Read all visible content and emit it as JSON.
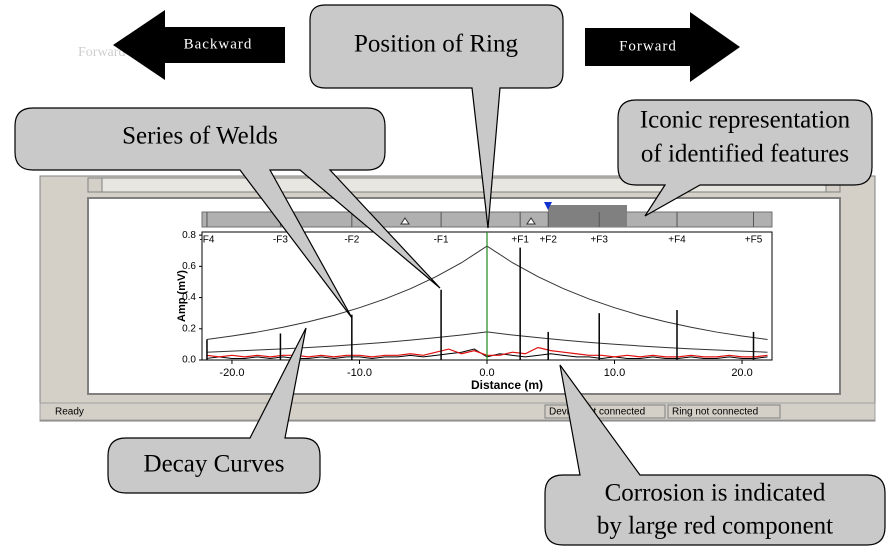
{
  "annotations": {
    "backward": "Backward",
    "forward": "Forward",
    "hidden_label": "Forward",
    "ring": "Position of Ring",
    "welds": "Series of Welds",
    "icons": [
      "Iconic representation",
      "of identified features"
    ],
    "decay": "Decay Curves",
    "corrosion": [
      "Corrosion is indicated",
      "by large red component"
    ]
  },
  "status_bar": [
    "Ready",
    "Device not connected",
    "Ring not connected"
  ],
  "chart": {
    "type": "line",
    "ylabel": "Amp (mV)",
    "xlabel": "Distance (m)",
    "xlim": [
      -22.35,
      22.35
    ],
    "ylim": [
      0,
      0.82
    ],
    "xticks": [
      {
        "value": -20,
        "label": "-20.0"
      },
      {
        "value": -10,
        "label": "-10.0"
      },
      {
        "value": 0,
        "label": "0.0"
      },
      {
        "value": 10,
        "label": "10.0"
      },
      {
        "value": 20,
        "label": "20.0"
      }
    ],
    "yticks": [
      {
        "value": 0,
        "label": "0.0"
      },
      {
        "value": 0.2,
        "label": "0.2"
      },
      {
        "value": 0.4,
        "label": "0.4"
      },
      {
        "value": 0.6,
        "label": "0.6"
      },
      {
        "value": 0.8,
        "label": "0.8"
      }
    ],
    "ring_x": 0,
    "ring_color": "#1a8a1a",
    "features": {
      "labels": [
        "-F4",
        "-F3",
        "-F2",
        "-F1",
        "+F1",
        "+F2",
        "+F3",
        "+F4",
        "+F5"
      ],
      "x": [
        -21.96,
        -16.2,
        -10.6,
        -3.6,
        2.6,
        4.8,
        8.8,
        14.9,
        20.9
      ],
      "peaks": [
        0.13,
        0.17,
        0.29,
        0.45,
        0.72,
        0.18,
        0.3,
        0.32,
        0.18
      ]
    },
    "decay": {
      "x": [
        -22,
        -20,
        -18,
        -16,
        -14,
        -12,
        -10,
        -8,
        -6,
        -4,
        -2,
        0,
        2,
        4,
        6,
        8,
        10,
        12,
        14,
        16,
        18,
        20,
        22
      ],
      "upper": [
        0.131,
        0.154,
        0.179,
        0.21,
        0.245,
        0.286,
        0.335,
        0.391,
        0.457,
        0.534,
        0.623,
        0.73,
        0.623,
        0.534,
        0.457,
        0.391,
        0.335,
        0.286,
        0.245,
        0.21,
        0.179,
        0.154,
        0.131
      ],
      "lower": [
        0.05,
        0.057,
        0.064,
        0.071,
        0.08,
        0.09,
        0.101,
        0.113,
        0.127,
        0.143,
        0.16,
        0.18,
        0.16,
        0.143,
        0.127,
        0.113,
        0.101,
        0.09,
        0.08,
        0.071,
        0.064,
        0.057,
        0.05
      ],
      "color": "#333333"
    },
    "noise": {
      "x": [
        -22,
        -21,
        -20,
        -19,
        -18,
        -17,
        -16,
        -15,
        -14,
        -13,
        -12,
        -11,
        -10,
        -9,
        -8,
        -7,
        -6,
        -5,
        -4,
        -3,
        -2,
        -1,
        0,
        1,
        2,
        3,
        4,
        5,
        6,
        7,
        8,
        9,
        10,
        11,
        12,
        13,
        14,
        15,
        16,
        17,
        18,
        19,
        20,
        21,
        22
      ],
      "black": [
        0.01,
        0.02,
        0.01,
        0.01,
        0.02,
        0.01,
        0.02,
        0.01,
        0.01,
        0.02,
        0.01,
        0.02,
        0.02,
        0.01,
        0.02,
        0.02,
        0.03,
        0.02,
        0.03,
        0.04,
        0.05,
        0.07,
        0.02,
        0.04,
        0.03,
        0.02,
        0.03,
        0.04,
        0.03,
        0.02,
        0.02,
        0.01,
        0.02,
        0.01,
        0.01,
        0.02,
        0.01,
        0.01,
        0.02,
        0.01,
        0.01,
        0.02,
        0.01,
        0.01,
        0.02
      ],
      "red": [
        0.03,
        0.02,
        0.03,
        0.02,
        0.03,
        0.02,
        0.03,
        0.03,
        0.02,
        0.03,
        0.02,
        0.03,
        0.03,
        0.02,
        0.03,
        0.03,
        0.04,
        0.03,
        0.05,
        0.07,
        0.04,
        0.06,
        0.03,
        0.03,
        0.05,
        0.04,
        0.08,
        0.06,
        0.05,
        0.04,
        0.03,
        0.03,
        0.02,
        0.03,
        0.02,
        0.03,
        0.02,
        0.02,
        0.03,
        0.02,
        0.02,
        0.03,
        0.02,
        0.02,
        0.03
      ],
      "black_color": "#000000",
      "red_color": "#e01010"
    }
  }
}
